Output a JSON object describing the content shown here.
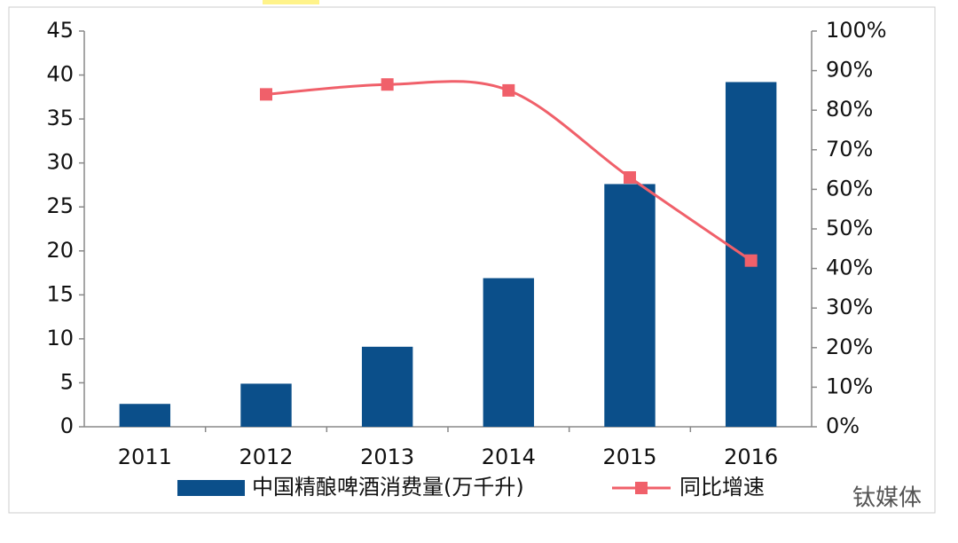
{
  "chart_data": {
    "type": "bar",
    "categories": [
      "2011",
      "2012",
      "2013",
      "2014",
      "2015",
      "2016"
    ],
    "series": [
      {
        "name": "中国精酿啤酒消费量(万千升)",
        "type": "bar",
        "color": "#0b4f8a",
        "values": [
          2.6,
          4.9,
          9.1,
          16.9,
          27.6,
          39.2
        ]
      },
      {
        "name": "同比增速",
        "type": "line",
        "axis": "y2",
        "color": "#f0606a",
        "values": [
          null,
          84,
          86.5,
          85,
          63,
          42
        ]
      }
    ],
    "ylim": [
      0,
      45
    ],
    "yticks": [
      0,
      5,
      10,
      15,
      20,
      25,
      30,
      35,
      40,
      45
    ],
    "y2lim": [
      0,
      100
    ],
    "y2ticks": [
      {
        "value": 0,
        "label": "0%"
      },
      {
        "value": 10,
        "label": "10%"
      },
      {
        "value": 20,
        "label": "20%"
      },
      {
        "value": 30,
        "label": "30%"
      },
      {
        "value": 40,
        "label": "40%"
      },
      {
        "value": 50,
        "label": "50%"
      },
      {
        "value": 60,
        "label": "60%"
      },
      {
        "value": 70,
        "label": "70%"
      },
      {
        "value": 80,
        "label": "80%"
      },
      {
        "value": 90,
        "label": "90%"
      },
      {
        "value": 100,
        "label": "100%"
      }
    ],
    "grid": false,
    "legend": "bottom",
    "watermark": "钛媒体"
  }
}
